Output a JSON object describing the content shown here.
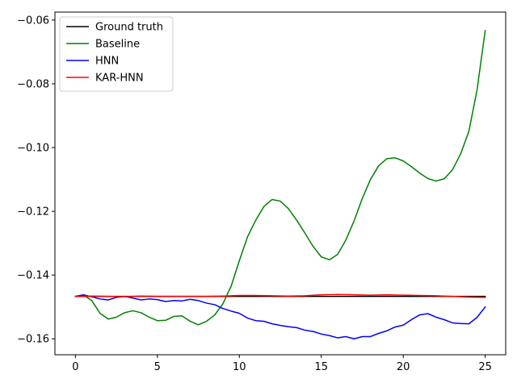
{
  "chart_data": {
    "type": "line",
    "title": "",
    "xlabel": "",
    "ylabel": "",
    "xlim": [
      -1.25,
      26.25
    ],
    "ylim": [
      -0.165,
      -0.0575
    ],
    "xticks": [
      0,
      5,
      10,
      15,
      20,
      25
    ],
    "yticks": [
      -0.16,
      -0.14,
      -0.12,
      -0.1,
      -0.08,
      -0.06
    ],
    "ytick_labels": [
      "−0.16",
      "−0.14",
      "−0.12",
      "−0.10",
      "−0.08",
      "−0.06"
    ],
    "grid": false,
    "legend_position": "top-left",
    "series": [
      {
        "name": "Ground truth",
        "color": "#000000",
        "x": [
          0,
          25
        ],
        "y": [
          -0.1467,
          -0.1467
        ]
      },
      {
        "name": "Baseline",
        "color": "#008000",
        "x": [
          0,
          0.5,
          1,
          1.5,
          2,
          2.5,
          3,
          3.5,
          4,
          4.5,
          5,
          5.5,
          6,
          6.5,
          7,
          7.5,
          8,
          8.5,
          9,
          9.5,
          10,
          10.5,
          11,
          11.5,
          12,
          12.5,
          13,
          13.5,
          14,
          14.5,
          15,
          15.5,
          16,
          16.5,
          17,
          17.5,
          18,
          18.5,
          19,
          19.5,
          20,
          20.5,
          21,
          21.5,
          22,
          22.5,
          23,
          23.5,
          24,
          24.5,
          25
        ],
        "y": [
          -0.1467,
          -0.1463,
          -0.148,
          -0.152,
          -0.1538,
          -0.1532,
          -0.1518,
          -0.1512,
          -0.1518,
          -0.1532,
          -0.1543,
          -0.1542,
          -0.153,
          -0.1528,
          -0.1545,
          -0.1556,
          -0.1545,
          -0.1525,
          -0.149,
          -0.1435,
          -0.1355,
          -0.128,
          -0.1228,
          -0.1185,
          -0.1163,
          -0.1168,
          -0.1192,
          -0.1228,
          -0.1268,
          -0.131,
          -0.1343,
          -0.1352,
          -0.1335,
          -0.129,
          -0.123,
          -0.116,
          -0.11,
          -0.1057,
          -0.1035,
          -0.1032,
          -0.1042,
          -0.106,
          -0.108,
          -0.1097,
          -0.1105,
          -0.1098,
          -0.107,
          -0.102,
          -0.095,
          -0.082,
          -0.0633
        ]
      },
      {
        "name": "HNN",
        "color": "#0000ff",
        "x": [
          0,
          0.5,
          1,
          1.5,
          2,
          2.5,
          3,
          3.5,
          4,
          4.5,
          5,
          5.5,
          6,
          6.5,
          7,
          7.5,
          8,
          8.5,
          9,
          9.5,
          10,
          10.5,
          11,
          11.5,
          12,
          12.5,
          13,
          13.5,
          14,
          14.5,
          15,
          15.5,
          16,
          16.5,
          17,
          17.5,
          18,
          18.5,
          19,
          19.5,
          20,
          20.5,
          21,
          21.5,
          22,
          22.5,
          23,
          23.5,
          24,
          24.5,
          25
        ],
        "y": [
          -0.1467,
          -0.1462,
          -0.1468,
          -0.1475,
          -0.1478,
          -0.147,
          -0.1467,
          -0.1472,
          -0.1478,
          -0.1475,
          -0.1477,
          -0.1483,
          -0.148,
          -0.1481,
          -0.1476,
          -0.148,
          -0.1488,
          -0.1493,
          -0.1505,
          -0.1513,
          -0.152,
          -0.1535,
          -0.1543,
          -0.1545,
          -0.1553,
          -0.1558,
          -0.1562,
          -0.1565,
          -0.1573,
          -0.1577,
          -0.1585,
          -0.159,
          -0.1597,
          -0.1593,
          -0.16,
          -0.1593,
          -0.1593,
          -0.1583,
          -0.1575,
          -0.1563,
          -0.1557,
          -0.154,
          -0.1525,
          -0.1521,
          -0.1532,
          -0.154,
          -0.155,
          -0.1552,
          -0.1553,
          -0.1533,
          -0.15
        ]
      },
      {
        "name": "KAR-HNN",
        "color": "#ff0000",
        "x": [
          0,
          1,
          2,
          3,
          4,
          5,
          6,
          7,
          8,
          9,
          10,
          11,
          12,
          13,
          14,
          15,
          16,
          17,
          18,
          19,
          20,
          21,
          22,
          23,
          24,
          25
        ],
        "y": [
          -0.1467,
          -0.1466,
          -0.1467,
          -0.1468,
          -0.1466,
          -0.1467,
          -0.1467,
          -0.1467,
          -0.1467,
          -0.1466,
          -0.1464,
          -0.1464,
          -0.1465,
          -0.1466,
          -0.1465,
          -0.1462,
          -0.1461,
          -0.1462,
          -0.1463,
          -0.1462,
          -0.1463,
          -0.1464,
          -0.1465,
          -0.1467,
          -0.1469,
          -0.147
        ]
      }
    ]
  }
}
